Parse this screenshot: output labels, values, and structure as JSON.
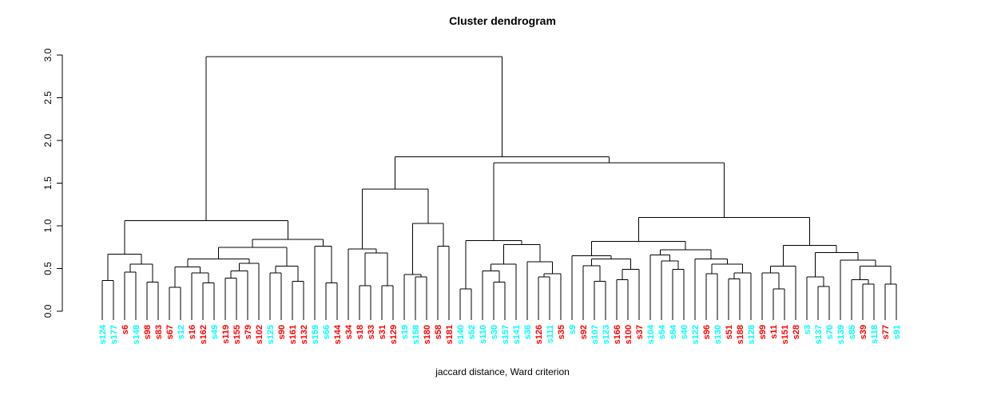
{
  "chart_data": {
    "type": "dendrogram",
    "title": "Cluster dendrogram",
    "caption": "jaccard distance, Ward criterion",
    "ylabel": "",
    "ylim": [
      0.0,
      3.0
    ],
    "yticks": [
      "0.0",
      "0.5",
      "1.0",
      "1.5",
      "2.0",
      "2.5",
      "3.0"
    ],
    "ytick_values": [
      0.0,
      0.5,
      1.0,
      1.5,
      2.0,
      2.5,
      3.0
    ],
    "grid": false,
    "line_color": "#000000",
    "label_colors": {
      "cluster1": "#00FFFF",
      "cluster2": "#FF0000"
    },
    "leaf_count": 72,
    "leaves": [
      {
        "label": "s124",
        "color": "#00FFFF"
      },
      {
        "label": "s177",
        "color": "#00FFFF"
      },
      {
        "label": "s6",
        "color": "#FF0000"
      },
      {
        "label": "s148",
        "color": "#00FFFF"
      },
      {
        "label": "s98",
        "color": "#FF0000"
      },
      {
        "label": "s83",
        "color": "#FF0000"
      },
      {
        "label": "s67",
        "color": "#FF0000"
      },
      {
        "label": "s12",
        "color": "#00FFFF"
      },
      {
        "label": "s16",
        "color": "#FF0000"
      },
      {
        "label": "s162",
        "color": "#FF0000"
      },
      {
        "label": "s49",
        "color": "#00FFFF"
      },
      {
        "label": "s119",
        "color": "#FF0000"
      },
      {
        "label": "s155",
        "color": "#FF0000"
      },
      {
        "label": "s79",
        "color": "#FF0000"
      },
      {
        "label": "s102",
        "color": "#FF0000"
      },
      {
        "label": "s125",
        "color": "#00FFFF"
      },
      {
        "label": "s90",
        "color": "#FF0000"
      },
      {
        "label": "s161",
        "color": "#FF0000"
      },
      {
        "label": "s132",
        "color": "#FF0000"
      },
      {
        "label": "s159",
        "color": "#00FFFF"
      },
      {
        "label": "s66",
        "color": "#00FFFF"
      },
      {
        "label": "s144",
        "color": "#FF0000"
      },
      {
        "label": "s34",
        "color": "#FF0000"
      },
      {
        "label": "s18",
        "color": "#FF0000"
      },
      {
        "label": "s33",
        "color": "#FF0000"
      },
      {
        "label": "s31",
        "color": "#FF0000"
      },
      {
        "label": "s129",
        "color": "#FF0000"
      },
      {
        "label": "s19",
        "color": "#00FFFF"
      },
      {
        "label": "s158",
        "color": "#00FFFF"
      },
      {
        "label": "s180",
        "color": "#FF0000"
      },
      {
        "label": "s58",
        "color": "#FF0000"
      },
      {
        "label": "s181",
        "color": "#FF0000"
      },
      {
        "label": "s140",
        "color": "#00FFFF"
      },
      {
        "label": "s52",
        "color": "#00FFFF"
      },
      {
        "label": "s110",
        "color": "#00FFFF"
      },
      {
        "label": "s30",
        "color": "#00FFFF"
      },
      {
        "label": "s157",
        "color": "#00FFFF"
      },
      {
        "label": "s141",
        "color": "#00FFFF"
      },
      {
        "label": "s36",
        "color": "#00FFFF"
      },
      {
        "label": "s126",
        "color": "#FF0000"
      },
      {
        "label": "s111",
        "color": "#00FFFF"
      },
      {
        "label": "s35",
        "color": "#FF0000"
      },
      {
        "label": "s9",
        "color": "#00FFFF"
      },
      {
        "label": "s92",
        "color": "#FF0000"
      },
      {
        "label": "s107",
        "color": "#00FFFF"
      },
      {
        "label": "s123",
        "color": "#00FFFF"
      },
      {
        "label": "s166",
        "color": "#FF0000"
      },
      {
        "label": "s100",
        "color": "#FF0000"
      },
      {
        "label": "s37",
        "color": "#FF0000"
      },
      {
        "label": "s104",
        "color": "#00FFFF"
      },
      {
        "label": "s54",
        "color": "#00FFFF"
      },
      {
        "label": "s64",
        "color": "#00FFFF"
      },
      {
        "label": "s40",
        "color": "#00FFFF"
      },
      {
        "label": "s122",
        "color": "#00FFFF"
      },
      {
        "label": "s96",
        "color": "#FF0000"
      },
      {
        "label": "s130",
        "color": "#00FFFF"
      },
      {
        "label": "s51",
        "color": "#FF0000"
      },
      {
        "label": "s188",
        "color": "#FF0000"
      },
      {
        "label": "s128",
        "color": "#00FFFF"
      },
      {
        "label": "s99",
        "color": "#FF0000"
      },
      {
        "label": "s11",
        "color": "#FF0000"
      },
      {
        "label": "s151",
        "color": "#FF0000"
      },
      {
        "label": "s28",
        "color": "#FF0000"
      },
      {
        "label": "s3",
        "color": "#00FFFF"
      },
      {
        "label": "s137",
        "color": "#00FFFF"
      },
      {
        "label": "s70",
        "color": "#00FFFF"
      },
      {
        "label": "s139",
        "color": "#00FFFF"
      },
      {
        "label": "s85",
        "color": "#00FFFF"
      },
      {
        "label": "s39",
        "color": "#FF0000"
      },
      {
        "label": "s118",
        "color": "#00FFFF"
      },
      {
        "label": "s77",
        "color": "#FF0000"
      },
      {
        "label": "s91",
        "color": "#00FFFF"
      }
    ],
    "merges": [
      2.98,
      [
        1.06,
        [
          0.67,
          [
            0.36,
            "s124",
            "s177"
          ],
          [
            0.55,
            [
              0.46,
              "s6",
              "s148"
            ],
            [
              0.34,
              "s98",
              "s83"
            ]
          ]
        ],
        [
          0.84,
          [
            0.75,
            [
              0.61,
              [
                0.52,
                [
                  0.28,
                  "s67",
                  "s12"
                ],
                [
                  0.45,
                  "s16",
                  [
                    0.33,
                    "s162",
                    "s49"
                  ]
                ]
              ],
              [
                0.56,
                [
                  0.47,
                  [
                    0.39,
                    "s119",
                    "s155"
                  ],
                  "s79"
                ],
                "s102"
              ]
            ],
            [
              0.53,
              [
                0.45,
                "s125",
                "s90"
              ],
              [
                0.35,
                "s161",
                "s132"
              ]
            ]
          ],
          [
            0.76,
            "s159",
            [
              0.33,
              "s66",
              "s144"
            ]
          ]
        ]
      ],
      [
        1.81,
        [
          1.43,
          [
            0.73,
            "s34",
            [
              0.68,
              [
                0.3,
                "s18",
                "s33"
              ],
              [
                0.3,
                "s31",
                "s129"
              ]
            ]
          ],
          [
            1.03,
            [
              0.43,
              "s19",
              [
                0.4,
                "s158",
                "s180"
              ]
            ],
            [
              0.76,
              "s58",
              "s181"
            ]
          ]
        ],
        [
          1.74,
          [
            0.825,
            [
              0.26,
              "s140",
              "s52"
            ],
            [
              0.78,
              [
                0.55,
                [
                  0.47,
                  "s110",
                  [
                    0.34,
                    "s30",
                    "s157"
                  ]
                ],
                "s141"
              ],
              [
                0.58,
                "s36",
                [
                  0.44,
                  [
                    0.4,
                    "s126",
                    "s111"
                  ],
                  "s35"
                ]
              ]
            ]
          ],
          [
            1.096,
            [
              0.82,
              [
                0.65,
                "s9",
                [
                  0.61,
                  [
                    0.535,
                    "s92",
                    [
                      0.35,
                      "s107",
                      "s123"
                    ]
                  ],
                  [
                    0.49,
                    [
                      0.37,
                      "s166",
                      "s100"
                    ],
                    "s37"
                  ]
                ]
              ],
              [
                0.72,
                [
                  0.66,
                  "s104",
                  [
                    0.59,
                    "s54",
                    [
                      0.49,
                      "s64",
                      "s40"
                    ]
                  ]
                ],
                [
                  0.61,
                  "s122",
                  [
                    0.55,
                    [
                      0.44,
                      "s96",
                      "s130"
                    ],
                    [
                      0.45,
                      [
                        0.38,
                        "s51",
                        "s188"
                      ],
                      "s128"
                    ]
                  ]
                ]
              ]
            ],
            [
              0.77,
              [
                0.53,
                [
                  0.45,
                  "s99",
                  [
                    0.26,
                    "s11",
                    "s151"
                  ]
                ],
                "s28"
              ],
              [
                0.685,
                [
                  0.4,
                  "s3",
                  [
                    0.29,
                    "s137",
                    "s70"
                  ]
                ],
                [
                  0.6,
                  "s139",
                  [
                    0.53,
                    [
                      0.37,
                      "s85",
                      [
                        0.32,
                        "s39",
                        "s118"
                      ]
                    ],
                    [
                      0.32,
                      "s77",
                      "s91"
                    ]
                  ]
                ]
              ]
            ]
          ]
        ]
      ]
    ]
  }
}
